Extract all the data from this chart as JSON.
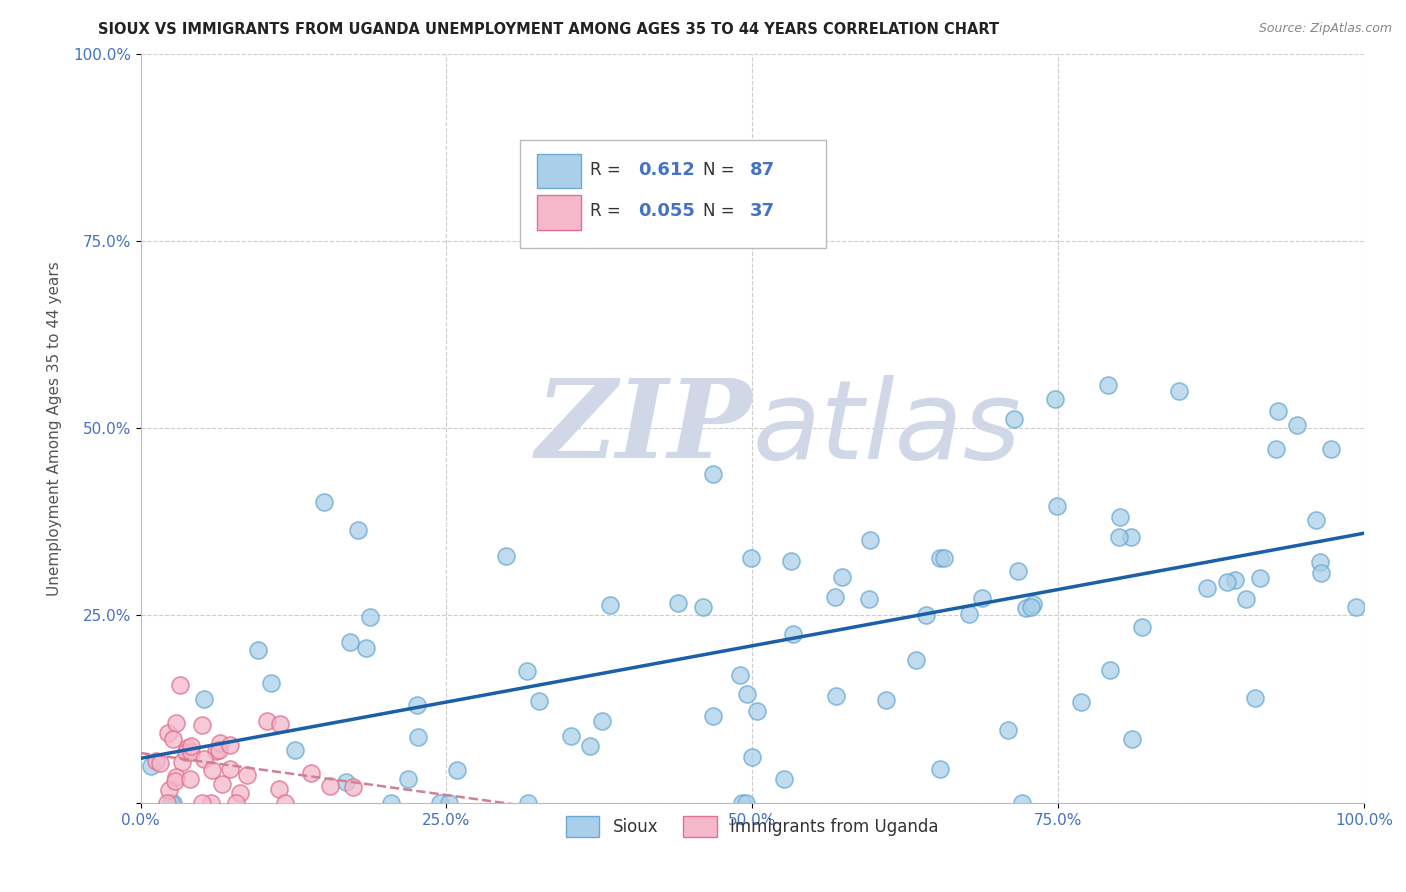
{
  "title": "SIOUX VS IMMIGRANTS FROM UGANDA UNEMPLOYMENT AMONG AGES 35 TO 44 YEARS CORRELATION CHART",
  "source": "Source: ZipAtlas.com",
  "ylabel": "Unemployment Among Ages 35 to 44 years",
  "xlim": [
    0,
    1.0
  ],
  "ylim": [
    0,
    1.0
  ],
  "xtick_labels": [
    "0.0%",
    "25.0%",
    "50.0%",
    "75.0%",
    "100.0%"
  ],
  "xtick_vals": [
    0.0,
    0.25,
    0.5,
    0.75,
    1.0
  ],
  "ytick_labels": [
    "",
    "25.0%",
    "50.0%",
    "75.0%",
    "100.0%"
  ],
  "ytick_vals": [
    0.0,
    0.25,
    0.5,
    0.75,
    1.0
  ],
  "sioux_R": 0.612,
  "sioux_N": 87,
  "uganda_R": 0.055,
  "uganda_N": 37,
  "sioux_color": "#aacfe8",
  "sioux_edge": "#6aaad4",
  "uganda_color": "#f4b8ca",
  "uganda_edge": "#e07090",
  "sioux_line_color": "#1a5fa8",
  "uganda_line_color": "#d08090",
  "R_color": "#4472c4",
  "N_color": "#4472c4",
  "background_color": "#ffffff",
  "watermark_color": "#d0d8e8"
}
